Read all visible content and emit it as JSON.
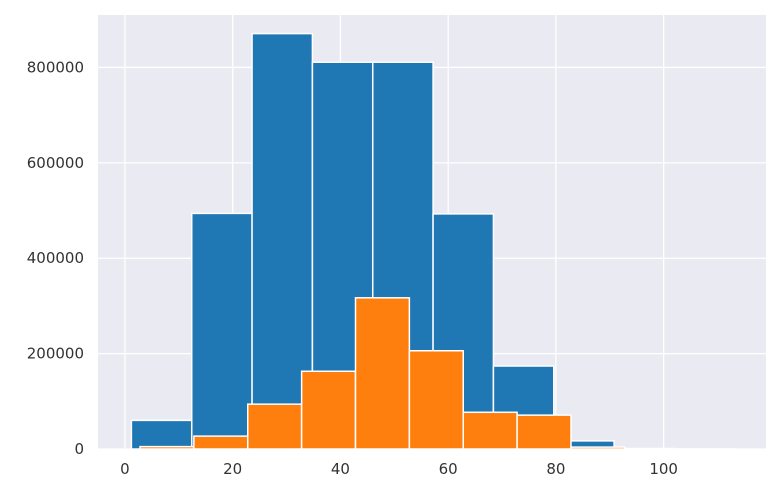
{
  "chart_data": {
    "type": "bar",
    "title": "",
    "xlabel": "",
    "ylabel": "",
    "xlim": [
      -5,
      119
    ],
    "ylim": [
      0,
      910000
    ],
    "grid": true,
    "x_ticks": [
      0,
      20,
      40,
      60,
      80,
      100
    ],
    "x_tick_labels": [
      "0",
      "20",
      "40",
      "60",
      "80",
      "100"
    ],
    "y_ticks": [
      0,
      200000,
      400000,
      600000,
      800000
    ],
    "y_tick_labels": [
      "0",
      "200000",
      "400000",
      "600000",
      "800000"
    ],
    "series": [
      {
        "color": "#1f77b4",
        "bin_edges": [
          1.2,
          12.4,
          23.6,
          34.8,
          46.0,
          57.2,
          68.4,
          79.6,
          90.8,
          102.0,
          113.2
        ],
        "values": [
          60000,
          494000,
          871000,
          811000,
          811000,
          493000,
          174000,
          17000,
          1000,
          100
        ]
      },
      {
        "color": "#ff7f0e",
        "bin_edges": [
          2.8,
          12.8,
          22.8,
          32.8,
          42.8,
          52.8,
          62.8,
          72.8,
          82.8,
          92.8
        ],
        "values": [
          5000,
          27000,
          94000,
          163000,
          317000,
          206000,
          77000,
          71000,
          4000
        ]
      }
    ]
  }
}
